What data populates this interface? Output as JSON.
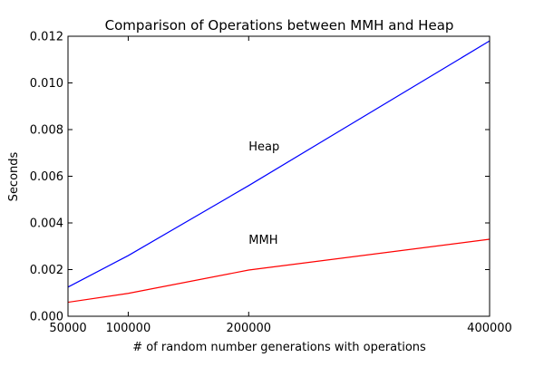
{
  "chart_data": {
    "type": "line",
    "title": "Comparison of Operations between MMH and Heap",
    "xlabel": "# of random number generations with operations",
    "ylabel": "Seconds",
    "xlim": [
      50000,
      400000
    ],
    "ylim": [
      0,
      0.012
    ],
    "x_ticks": [
      50000,
      100000,
      200000,
      400000
    ],
    "x_tick_labels": [
      "50000",
      "100000",
      "200000",
      "400000"
    ],
    "y_ticks": [
      0,
      0.002,
      0.004,
      0.006,
      0.008,
      0.01,
      0.012
    ],
    "y_tick_labels": [
      "0.000",
      "0.002",
      "0.004",
      "0.006",
      "0.008",
      "0.010",
      "0.012"
    ],
    "grid": false,
    "x": [
      50000,
      100000,
      200000,
      400000
    ],
    "series": [
      {
        "name": "Heap",
        "values": [
          0.00125,
          0.0026,
          0.0056,
          0.0118
        ],
        "color": "#0000ff"
      },
      {
        "name": "MMH",
        "values": [
          0.0006,
          0.00098,
          0.00198,
          0.0033
        ],
        "color": "#ff0000"
      }
    ],
    "annotations": [
      {
        "text": "Heap",
        "x": 200000,
        "y": 0.0071
      },
      {
        "text": "MMH",
        "x": 200000,
        "y": 0.0031
      }
    ]
  }
}
